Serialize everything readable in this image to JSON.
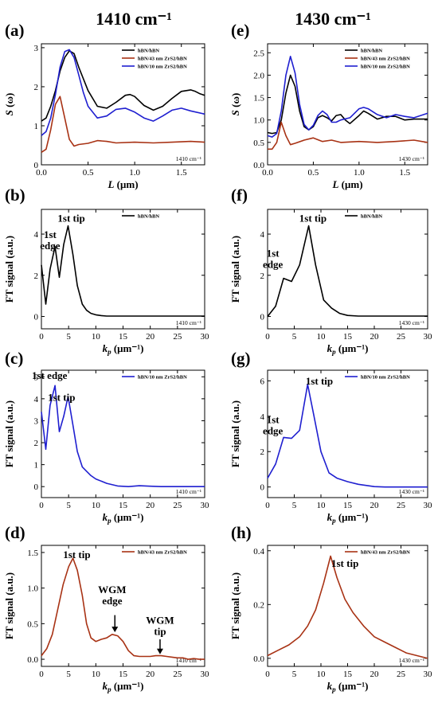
{
  "figure": {
    "left_title": "1410 cm⁻¹",
    "right_title": "1430 cm⁻¹"
  },
  "colors": {
    "black": "#000000",
    "red": "#a83214",
    "blue": "#1f1fd0"
  },
  "chart_data": [
    {
      "id": "a",
      "panel_label": "(a)",
      "type": "line",
      "xlabel_main": "L",
      "xlabel_unit": "(μm)",
      "ylabel_main": "S",
      "ylabel_unit": "(ω)",
      "xlim": [
        0,
        1.75
      ],
      "ylim": [
        0,
        3.1
      ],
      "xticks": [
        0.0,
        0.5,
        1.0,
        1.5
      ],
      "xtick_labels": [
        "0.0",
        "0.5",
        "1.0",
        "1.5"
      ],
      "yticks": [
        0,
        1,
        2,
        3
      ],
      "ytick_labels": [
        "0",
        "1",
        "2",
        "3"
      ],
      "corner_label": "1410 cm⁻¹",
      "series": [
        {
          "name": "hBN/hBN",
          "color": "#000000",
          "x": [
            0,
            0.05,
            0.1,
            0.15,
            0.2,
            0.25,
            0.3,
            0.35,
            0.4,
            0.5,
            0.6,
            0.7,
            0.8,
            0.9,
            0.95,
            1.0,
            1.1,
            1.2,
            1.3,
            1.4,
            1.5,
            1.6,
            1.65,
            1.7,
            1.75
          ],
          "y": [
            1.12,
            1.2,
            1.5,
            1.9,
            2.4,
            2.75,
            2.92,
            2.85,
            2.5,
            1.9,
            1.5,
            1.45,
            1.6,
            1.78,
            1.8,
            1.75,
            1.52,
            1.4,
            1.5,
            1.7,
            1.88,
            1.92,
            1.88,
            1.82,
            1.78
          ]
        },
        {
          "name": "hBN/43 nm ZrS2/hBN",
          "color": "#a83214",
          "x": [
            0,
            0.05,
            0.1,
            0.15,
            0.2,
            0.25,
            0.3,
            0.35,
            0.4,
            0.5,
            0.6,
            0.7,
            0.8,
            1.0,
            1.2,
            1.4,
            1.6,
            1.75
          ],
          "y": [
            0.32,
            0.4,
            0.9,
            1.55,
            1.75,
            1.2,
            0.65,
            0.48,
            0.52,
            0.55,
            0.62,
            0.6,
            0.56,
            0.58,
            0.56,
            0.58,
            0.6,
            0.58
          ]
        },
        {
          "name": "hBN/10 nm ZrS2/hBN",
          "color": "#1f1fd0",
          "x": [
            0,
            0.05,
            0.1,
            0.15,
            0.2,
            0.25,
            0.3,
            0.35,
            0.4,
            0.45,
            0.5,
            0.6,
            0.7,
            0.8,
            0.9,
            1.0,
            1.1,
            1.2,
            1.3,
            1.4,
            1.5,
            1.6,
            1.75
          ],
          "y": [
            0.75,
            0.85,
            1.2,
            1.8,
            2.5,
            2.9,
            2.95,
            2.75,
            2.3,
            1.85,
            1.5,
            1.2,
            1.25,
            1.42,
            1.45,
            1.35,
            1.2,
            1.12,
            1.25,
            1.4,
            1.45,
            1.38,
            1.3
          ]
        }
      ]
    },
    {
      "id": "e",
      "panel_label": "(e)",
      "type": "line",
      "xlabel_main": "L",
      "xlabel_unit": "(μm)",
      "ylabel_main": "S",
      "ylabel_unit": "(ω)",
      "xlim": [
        0,
        1.75
      ],
      "ylim": [
        0,
        2.7
      ],
      "xticks": [
        0.0,
        0.5,
        1.0,
        1.5
      ],
      "xtick_labels": [
        "0.0",
        "0.5",
        "1.0",
        "1.5"
      ],
      "yticks": [
        0,
        0.5,
        1.0,
        1.5,
        2.0,
        2.5
      ],
      "ytick_labels": [
        "0.0",
        "0.5",
        "1.0",
        "1.5",
        "2.0",
        "2.5"
      ],
      "corner_label": "1430 cm⁻¹",
      "series": [
        {
          "name": "hBN/hBN",
          "color": "#000000",
          "x": [
            0,
            0.05,
            0.1,
            0.15,
            0.2,
            0.25,
            0.3,
            0.35,
            0.4,
            0.45,
            0.5,
            0.55,
            0.6,
            0.65,
            0.7,
            0.75,
            0.8,
            0.85,
            0.9,
            1.0,
            1.05,
            1.1,
            1.2,
            1.3,
            1.4,
            1.5,
            1.6,
            1.75
          ],
          "y": [
            0.72,
            0.7,
            0.72,
            1.0,
            1.6,
            2.0,
            1.75,
            1.2,
            0.85,
            0.78,
            0.85,
            1.05,
            1.1,
            1.05,
            0.98,
            1.1,
            1.12,
            1.0,
            0.92,
            1.1,
            1.2,
            1.15,
            1.02,
            1.08,
            1.08,
            1.0,
            1.02,
            1.02
          ]
        },
        {
          "name": "hBN/43 nm ZrS2/hBN",
          "color": "#a83214",
          "x": [
            0,
            0.05,
            0.1,
            0.15,
            0.2,
            0.25,
            0.3,
            0.4,
            0.5,
            0.6,
            0.7,
            0.8,
            1.0,
            1.2,
            1.4,
            1.6,
            1.75
          ],
          "y": [
            0.35,
            0.35,
            0.5,
            0.95,
            0.65,
            0.45,
            0.48,
            0.55,
            0.6,
            0.52,
            0.55,
            0.5,
            0.52,
            0.5,
            0.52,
            0.55,
            0.5
          ]
        },
        {
          "name": "hBN/10 nm ZrS2/hBN",
          "color": "#1f1fd0",
          "x": [
            0,
            0.05,
            0.1,
            0.15,
            0.2,
            0.25,
            0.3,
            0.35,
            0.4,
            0.45,
            0.5,
            0.55,
            0.6,
            0.65,
            0.7,
            0.75,
            0.8,
            0.9,
            1.0,
            1.05,
            1.1,
            1.2,
            1.3,
            1.4,
            1.5,
            1.6,
            1.75
          ],
          "y": [
            0.65,
            0.62,
            0.7,
            1.2,
            2.0,
            2.42,
            2.05,
            1.35,
            0.9,
            0.78,
            0.88,
            1.1,
            1.2,
            1.12,
            0.95,
            0.95,
            1.0,
            1.05,
            1.25,
            1.28,
            1.25,
            1.12,
            1.05,
            1.12,
            1.08,
            1.05,
            1.15
          ]
        }
      ]
    },
    {
      "id": "b",
      "panel_label": "(b)",
      "type": "line",
      "xlabel_main": "k",
      "xlabel_sub": "p",
      "xlabel_unit": "(μm⁻¹)",
      "ylabel": "FT signal (a.u.)",
      "xlim": [
        0,
        30
      ],
      "ylim": [
        -0.6,
        5.2
      ],
      "xticks": [
        0,
        5,
        10,
        15,
        20,
        25,
        30
      ],
      "xtick_labels": [
        "0",
        "5",
        "10",
        "15",
        "20",
        "25",
        "30"
      ],
      "yticks": [
        0,
        2,
        4
      ],
      "ytick_labels": [
        "0",
        "2",
        "4"
      ],
      "corner_label": "1410 cm⁻¹",
      "series": [
        {
          "name": "hBN/hBN",
          "color": "#000000",
          "x": [
            0,
            0.8,
            1.6,
            2.5,
            3.3,
            4.1,
            4.9,
            5.8,
            6.6,
            7.5,
            8.3,
            9.1,
            10,
            11,
            12,
            14,
            16,
            18,
            20,
            22,
            25,
            28,
            30
          ],
          "y": [
            2.5,
            0.6,
            2.3,
            3.4,
            1.9,
            3.5,
            4.4,
            3.0,
            1.5,
            0.6,
            0.3,
            0.15,
            0.08,
            0.04,
            0.02,
            0.02,
            0.02,
            0.02,
            0.02,
            0.02,
            0.02,
            0.02,
            0.02
          ]
        }
      ],
      "annotations": [
        {
          "lines": [
            "1st",
            "edge"
          ],
          "x": 1.6,
          "y": 3.8
        },
        {
          "lines": [
            "1st tip"
          ],
          "x": 5.5,
          "y": 4.6
        }
      ]
    },
    {
      "id": "f",
      "panel_label": "(f)",
      "type": "line",
      "xlabel_main": "k",
      "xlabel_sub": "p",
      "xlabel_unit": "(μm⁻¹)",
      "ylabel": "FT signal (a.u.)",
      "xlim": [
        0,
        30
      ],
      "ylim": [
        -0.6,
        5.2
      ],
      "xticks": [
        0,
        5,
        10,
        15,
        20,
        25,
        30
      ],
      "xtick_labels": [
        "0",
        "5",
        "10",
        "15",
        "20",
        "25",
        "30"
      ],
      "yticks": [
        0,
        2,
        4
      ],
      "ytick_labels": [
        "0",
        "2",
        "4"
      ],
      "corner_label": "1430 cm⁻¹",
      "series": [
        {
          "name": "hBN/hBN",
          "color": "#000000",
          "x": [
            0,
            1.5,
            3,
            4.5,
            6,
            7.7,
            9,
            10.5,
            12,
            13.5,
            15,
            17,
            20,
            25,
            30
          ],
          "y": [
            0,
            0.5,
            1.85,
            1.7,
            2.5,
            4.4,
            2.5,
            0.8,
            0.4,
            0.15,
            0.05,
            0.02,
            0.02,
            0.02,
            0.02
          ]
        }
      ],
      "annotations": [
        {
          "lines": [
            "1st",
            "edge"
          ],
          "x": 1.0,
          "y": 2.9
        },
        {
          "lines": [
            "1st tip"
          ],
          "x": 8.5,
          "y": 4.6
        }
      ]
    },
    {
      "id": "c",
      "panel_label": "(c)",
      "type": "line",
      "xlabel_main": "k",
      "xlabel_sub": "p",
      "xlabel_unit": "(μm⁻¹)",
      "ylabel": "FT signal (a.u.)",
      "xlim": [
        0,
        30
      ],
      "ylim": [
        -0.5,
        5.3
      ],
      "xticks": [
        0,
        5,
        10,
        15,
        20,
        25,
        30
      ],
      "xtick_labels": [
        "0",
        "5",
        "10",
        "15",
        "20",
        "25",
        "30"
      ],
      "yticks": [
        0,
        1,
        2,
        3,
        4,
        5
      ],
      "ytick_labels": [
        "0",
        "1",
        "2",
        "3",
        "4",
        "5"
      ],
      "corner_label": "1410 cm⁻¹",
      "series": [
        {
          "name": "hBN/10 nm ZrS2/hBN",
          "color": "#1f1fd0",
          "x": [
            0,
            0.8,
            1.6,
            2.5,
            3.3,
            4.1,
            4.9,
            5.8,
            6.6,
            7.5,
            8.3,
            9.1,
            10,
            12,
            14,
            16,
            18,
            20,
            22,
            25,
            28,
            30
          ],
          "y": [
            3.4,
            1.7,
            3.7,
            4.6,
            2.5,
            3.2,
            4.1,
            2.8,
            1.6,
            0.9,
            0.7,
            0.5,
            0.35,
            0.15,
            0.03,
            0.0,
            0.04,
            0.02,
            0.0,
            0.0,
            0.0,
            0.0
          ]
        }
      ],
      "annotations": [
        {
          "lines": [
            "1st edge"
          ],
          "x": 1.5,
          "y": 4.9
        },
        {
          "lines": [
            "1st tip"
          ],
          "x": 3.7,
          "y": 3.9
        }
      ]
    },
    {
      "id": "g",
      "panel_label": "(g)",
      "type": "line",
      "xlabel_main": "k",
      "xlabel_sub": "p",
      "xlabel_unit": "(μm⁻¹)",
      "ylabel": "FT signal (a.u.)",
      "xlim": [
        0,
        30
      ],
      "ylim": [
        -0.6,
        6.6
      ],
      "xticks": [
        0,
        5,
        10,
        15,
        20,
        25,
        30
      ],
      "xtick_labels": [
        "0",
        "5",
        "10",
        "15",
        "20",
        "25",
        "30"
      ],
      "yticks": [
        0,
        2,
        4,
        6
      ],
      "ytick_labels": [
        "0",
        "2",
        "4",
        "6"
      ],
      "corner_label": "1430 cm⁻¹",
      "series": [
        {
          "name": "hBN/10 nm ZrS2/hBN",
          "color": "#1f1fd0",
          "x": [
            0,
            1.5,
            3,
            4.5,
            6,
            7.5,
            8.7,
            10,
            11.5,
            13,
            15,
            17,
            20,
            22,
            25,
            28,
            30
          ],
          "y": [
            0.5,
            1.3,
            2.8,
            2.75,
            3.2,
            5.8,
            4.0,
            2.0,
            0.8,
            0.5,
            0.3,
            0.15,
            0.02,
            0.0,
            0.0,
            0.0,
            0.0
          ]
        }
      ],
      "annotations": [
        {
          "lines": [
            "1st",
            "edge"
          ],
          "x": 1.0,
          "y": 3.6
        },
        {
          "lines": [
            "1st tip"
          ],
          "x": 9.7,
          "y": 5.8
        }
      ]
    },
    {
      "id": "d",
      "panel_label": "(d)",
      "type": "line",
      "xlabel_main": "k",
      "xlabel_sub": "p",
      "xlabel_unit": "(μm⁻¹)",
      "ylabel": "FT signal (a.u.)",
      "xlim": [
        0,
        30
      ],
      "ylim": [
        -0.1,
        1.6
      ],
      "xticks": [
        0,
        5,
        10,
        15,
        20,
        25,
        30
      ],
      "xtick_labels": [
        "0",
        "5",
        "10",
        "15",
        "20",
        "25",
        "30"
      ],
      "yticks": [
        0,
        0.5,
        1.0,
        1.5
      ],
      "ytick_labels": [
        "0.0",
        "0.5",
        "1.0",
        "1.5"
      ],
      "corner_label": "1410 cm⁻¹",
      "series": [
        {
          "name": "hBN/43 nm ZrS2/hBN",
          "color": "#a83214",
          "x": [
            0,
            1,
            2,
            3,
            4,
            5,
            5.8,
            6.6,
            7.5,
            8.3,
            9.1,
            10,
            11,
            12,
            13,
            14,
            15,
            16,
            17,
            18,
            19,
            20,
            21,
            22,
            23,
            24,
            25,
            26,
            27,
            28,
            29,
            30
          ],
          "y": [
            0.05,
            0.15,
            0.35,
            0.7,
            1.05,
            1.3,
            1.42,
            1.25,
            0.9,
            0.5,
            0.3,
            0.25,
            0.28,
            0.3,
            0.35,
            0.33,
            0.25,
            0.12,
            0.05,
            0.04,
            0.04,
            0.04,
            0.05,
            0.05,
            0.04,
            0.03,
            0.02,
            0.02,
            0.0,
            0.01,
            0.0,
            0.0
          ]
        }
      ],
      "annotations": [
        {
          "lines": [
            "1st tip"
          ],
          "x": 6.5,
          "y": 1.42
        },
        {
          "lines": [
            "WGM",
            "edge"
          ],
          "x": 13.0,
          "y": 0.93
        },
        {
          "lines": [
            "WGM",
            "tip"
          ],
          "x": 21.8,
          "y": 0.5
        }
      ],
      "arrows": [
        {
          "x": 13.5,
          "y_from": 0.62,
          "y_to": 0.38
        },
        {
          "x": 21.8,
          "y_from": 0.28,
          "y_to": 0.07
        }
      ]
    },
    {
      "id": "h",
      "panel_label": "(h)",
      "type": "line",
      "xlabel_main": "k",
      "xlabel_sub": "p",
      "xlabel_unit": "(μm⁻¹)",
      "ylabel": "FT signal (a.u.)",
      "xlim": [
        0,
        30
      ],
      "ylim": [
        -0.03,
        0.42
      ],
      "xticks": [
        0,
        5,
        10,
        15,
        20,
        25,
        30
      ],
      "xtick_labels": [
        "0",
        "5",
        "10",
        "15",
        "20",
        "25",
        "30"
      ],
      "yticks": [
        0,
        0.2,
        0.4
      ],
      "ytick_labels": [
        "0.0",
        "0.2",
        "0.4"
      ],
      "corner_label": "1430 cm⁻¹",
      "series": [
        {
          "name": "hBN/43 nm ZrS2/hBN",
          "color": "#a83214",
          "x": [
            0,
            2,
            4,
            6,
            7.5,
            9,
            10.5,
            11.8,
            13,
            14.5,
            16,
            18,
            20,
            22,
            24,
            26,
            28,
            30
          ],
          "y": [
            0.01,
            0.03,
            0.05,
            0.08,
            0.12,
            0.18,
            0.28,
            0.38,
            0.3,
            0.22,
            0.17,
            0.12,
            0.08,
            0.06,
            0.04,
            0.02,
            0.01,
            0.0
          ]
        }
      ],
      "annotations": [
        {
          "lines": [
            "1st tip"
          ],
          "x": 14.5,
          "y": 0.34
        }
      ]
    }
  ]
}
